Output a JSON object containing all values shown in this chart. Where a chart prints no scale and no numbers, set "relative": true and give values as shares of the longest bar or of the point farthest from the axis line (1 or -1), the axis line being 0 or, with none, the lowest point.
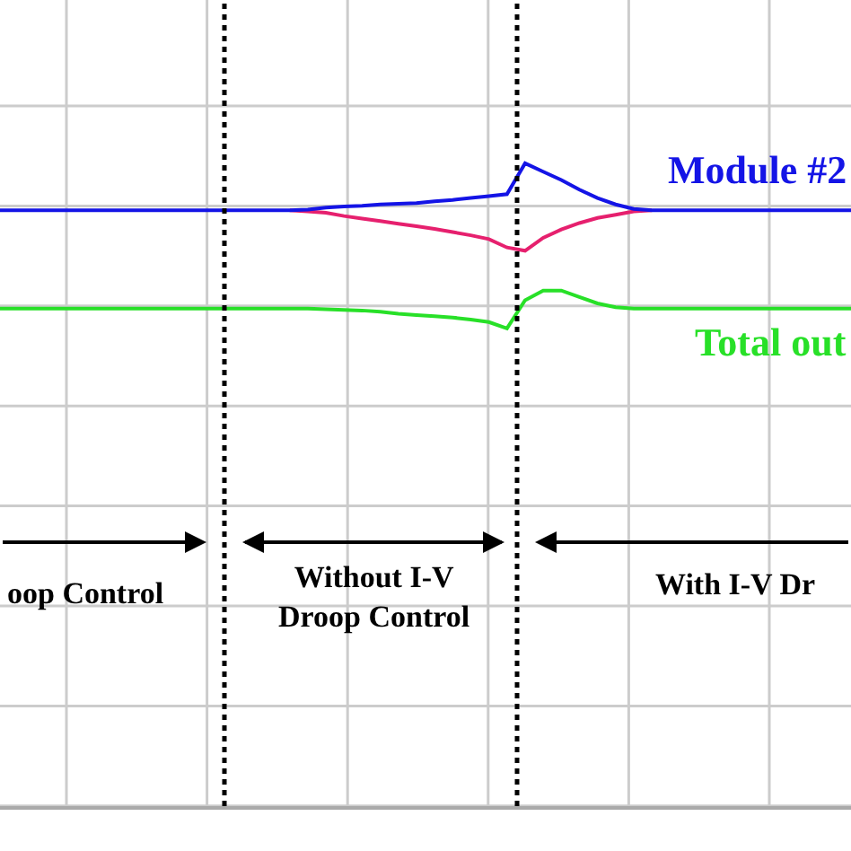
{
  "chart_data": {
    "type": "line",
    "relative": true,
    "grid": true,
    "tick_labels": false,
    "legend": false,
    "marker": "none",
    "line_style": "solid",
    "categories": [
      null,
      null,
      null,
      null,
      null,
      null,
      null,
      null,
      null,
      null,
      null,
      null,
      null,
      null,
      null,
      null,
      null,
      null,
      null,
      null,
      null,
      null,
      null,
      null,
      null,
      null,
      null,
      null,
      null,
      null,
      null,
      null,
      null,
      null,
      null,
      null,
      null,
      null,
      null,
      null,
      null,
      null,
      null,
      null,
      null,
      null,
      null,
      null
    ],
    "series": [
      {
        "name": "Module #2",
        "color": "#1414e6",
        "values": [
          0.927,
          0.927,
          0.927,
          0.927,
          0.927,
          0.927,
          0.927,
          0.927,
          0.927,
          0.927,
          0.927,
          0.927,
          0.927,
          0.927,
          0.927,
          0.927,
          0.927,
          0.928,
          0.931,
          0.933,
          0.934,
          0.936,
          0.937,
          0.938,
          0.941,
          0.943,
          0.946,
          0.949,
          0.952,
          1,
          0.987,
          0.974,
          0.959,
          0.946,
          0.936,
          0.929,
          0.927,
          0.927,
          0.927,
          0.927,
          0.927,
          0.927,
          0.927,
          0.927,
          0.927,
          0.927,
          0.927,
          0.927
        ]
      },
      {
        "color": "#e6206e",
        "values": [
          null,
          null,
          null,
          null,
          null,
          null,
          null,
          null,
          null,
          null,
          null,
          null,
          null,
          null,
          null,
          null,
          0.927,
          0.925,
          0.923,
          0.918,
          0.914,
          0.91,
          0.906,
          0.902,
          0.898,
          0.893,
          0.888,
          0.882,
          0.869,
          0.864,
          0.884,
          0.897,
          0.907,
          0.915,
          0.92,
          0.925,
          0.927,
          null,
          null,
          null,
          null,
          null,
          null,
          null,
          null,
          null,
          null,
          null
        ]
      },
      {
        "name": "Total out",
        "color": "#28e028",
        "values": [
          0.774,
          0.774,
          0.774,
          0.774,
          0.774,
          0.774,
          0.774,
          0.774,
          0.774,
          0.774,
          0.774,
          0.774,
          0.774,
          0.774,
          0.774,
          0.774,
          0.774,
          0.774,
          0.773,
          0.772,
          0.771,
          0.769,
          0.766,
          0.764,
          0.762,
          0.76,
          0.757,
          0.753,
          0.743,
          0.787,
          0.802,
          0.802,
          0.792,
          0.782,
          0.776,
          0.774,
          0.774,
          0.774,
          0.774,
          0.774,
          0.774,
          0.774,
          0.774,
          0.774,
          0.774,
          0.774,
          0.774,
          0.774
        ]
      }
    ],
    "annotations": [
      "oop Control",
      "Without I-V\nDroop Control",
      "With I-V Dr"
    ]
  }
}
